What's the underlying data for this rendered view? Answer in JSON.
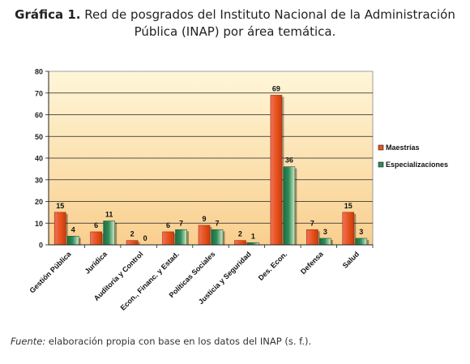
{
  "title": {
    "label": "Gráfica 1.",
    "text_line1": "Red de posgrados del Instituto Nacional de la Administración",
    "text_line2": "Pública (INAP) por área temática."
  },
  "source": {
    "label": "Fuente:",
    "text": " elaboración propia con base en los datos del INAP (s. f.)."
  },
  "colors": {
    "maestrias": "#e8541c",
    "especializaciones": "#2e8b57",
    "plot_top": "#fff6d8",
    "plot_bottom": "#f9cf8e"
  },
  "chart_data": {
    "type": "bar",
    "categories": [
      "Gestión Pública",
      "Jurídica",
      "Auditoría y Control",
      "Econ., Financ. y Estad.",
      "Políticas Sociales",
      "Justicia y Seguridad",
      "Des. Econ.",
      "Defensa",
      "Salud"
    ],
    "series": [
      {
        "name": "Maestrías",
        "values": [
          15,
          6,
          2,
          6,
          9,
          2,
          69,
          7,
          15
        ]
      },
      {
        "name": "Especializaciones",
        "values": [
          4,
          11,
          0,
          7,
          7,
          1,
          36,
          3,
          3
        ]
      }
    ],
    "yticks": [
      0,
      10,
      20,
      30,
      40,
      50,
      60,
      70,
      80
    ],
    "ylim": [
      0,
      80
    ],
    "grid": true,
    "legend": "right"
  }
}
